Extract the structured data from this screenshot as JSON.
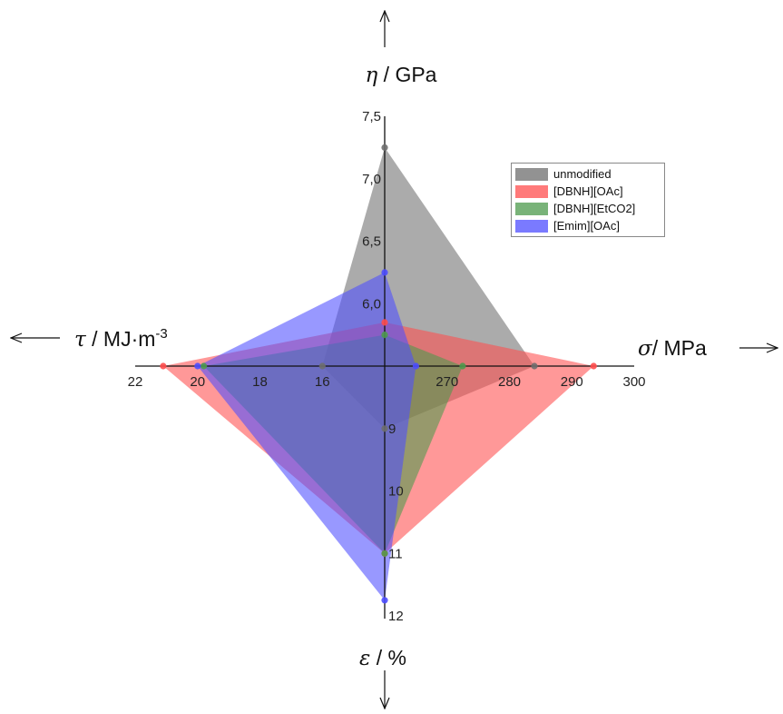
{
  "chart_data": {
    "type": "radar",
    "axes": [
      {
        "key": "eta",
        "direction": "up",
        "symbol": "η",
        "label": " / GPa",
        "ticks": [
          "6,0",
          "6,5",
          "7,0",
          "7,5"
        ],
        "range": [
          5.5,
          7.5
        ]
      },
      {
        "key": "sigma",
        "direction": "right",
        "symbol": "σ",
        "label": "/ MPa",
        "ticks": [
          "270",
          "280",
          "290",
          "300"
        ],
        "range": [
          260,
          300
        ]
      },
      {
        "key": "epsilon",
        "direction": "down",
        "symbol": "ε",
        "label": " / %",
        "ticks": [
          "9",
          "10",
          "11",
          "12"
        ],
        "range": [
          8,
          12
        ]
      },
      {
        "key": "tau",
        "direction": "left",
        "symbol": "τ",
        "label": " / MJ·m",
        "label_sup": "-3",
        "ticks": [
          "16",
          "18",
          "20",
          "22"
        ],
        "range": [
          14,
          22
        ]
      }
    ],
    "series": [
      {
        "name": "unmodified",
        "color": "#6e6e6e",
        "values": {
          "eta": 7.25,
          "sigma": 284,
          "epsilon": 9.0,
          "tau": 16.0
        }
      },
      {
        "name": "[DBNH][OAc]",
        "color": "#ff4d4d",
        "values": {
          "eta": 5.85,
          "sigma": 293.5,
          "epsilon": 11.0,
          "tau": 21.1
        }
      },
      {
        "name": "[DBNH][EtCO2]",
        "color": "#4c9a4c",
        "values": {
          "eta": 5.75,
          "sigma": 272.5,
          "epsilon": 11.0,
          "tau": 19.8
        }
      },
      {
        "name": "[Emim][OAc]",
        "color": "#4d4dff",
        "values": {
          "eta": 6.25,
          "sigma": 265,
          "epsilon": 11.75,
          "tau": 20.0
        }
      }
    ],
    "legend_position": "top-right",
    "grid": false
  }
}
